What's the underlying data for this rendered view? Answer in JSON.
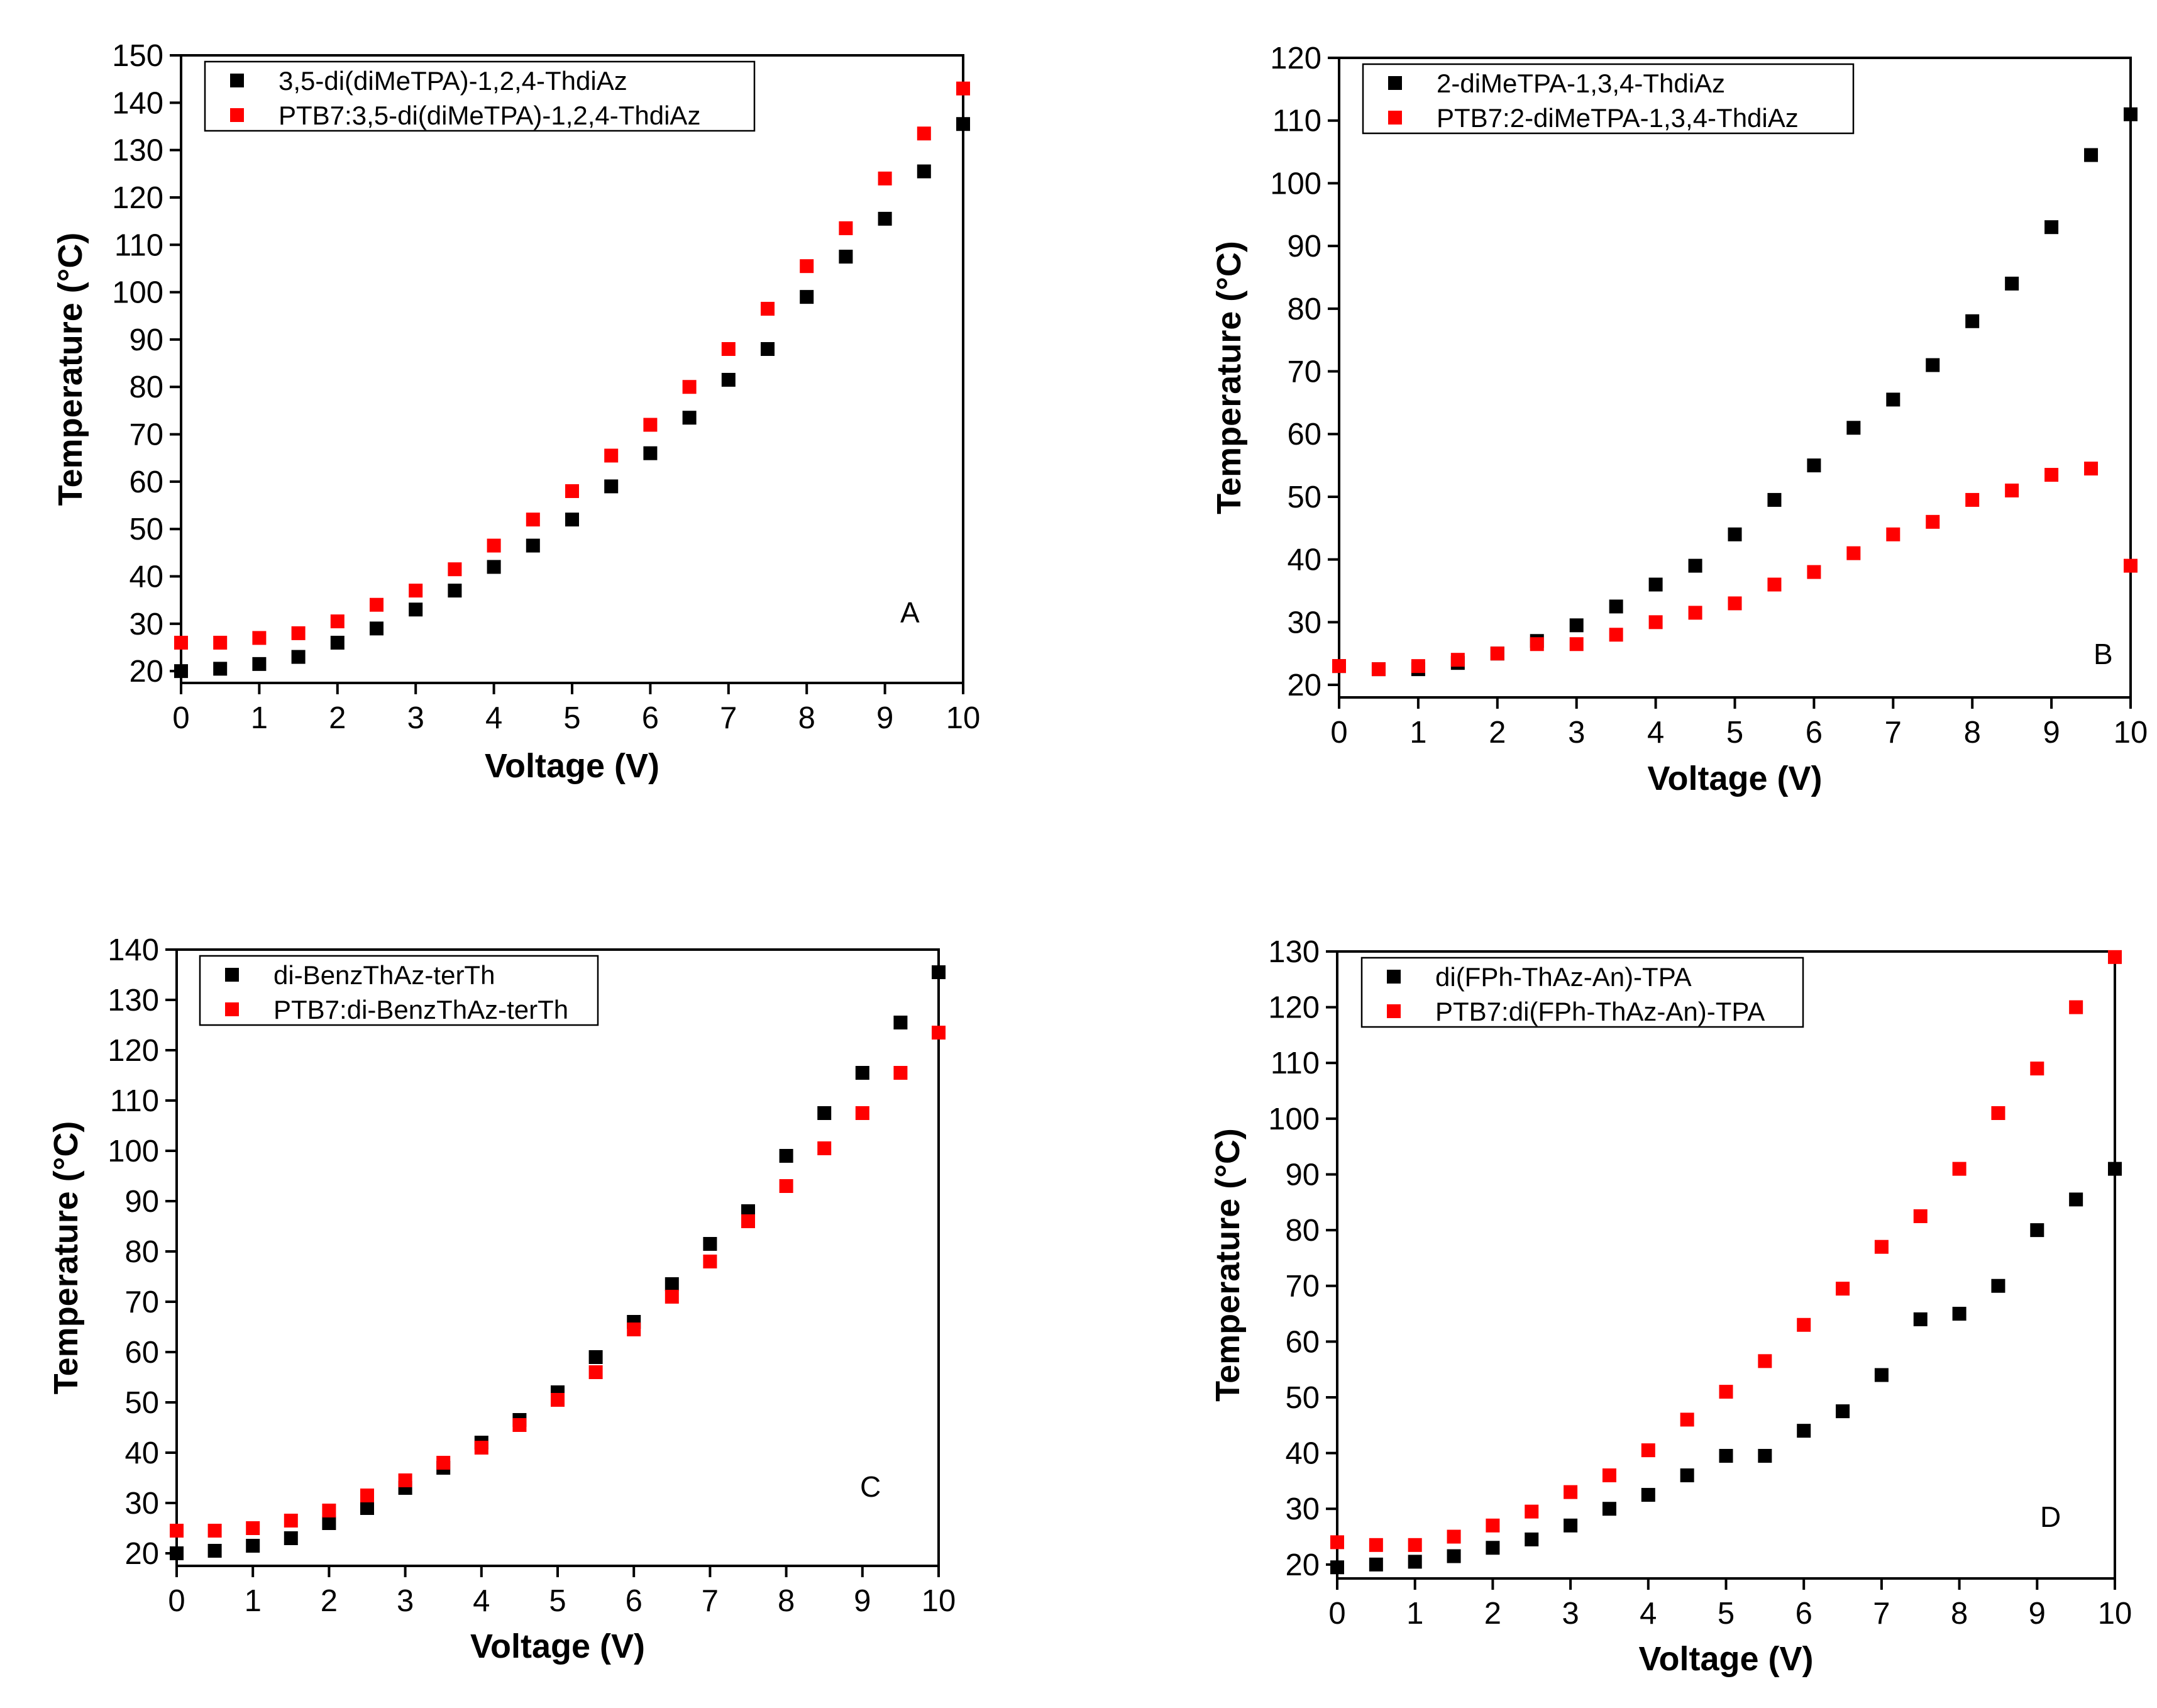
{
  "figure": {
    "colors": {
      "series_1": "#000000",
      "series_2": "#ff0000"
    }
  },
  "chart_data": [
    {
      "panel": "A",
      "type": "scatter",
      "xlabel": "Voltage (V)",
      "ylabel": "Temperature (°C)",
      "xlim": [
        0,
        10
      ],
      "ylim": [
        17.5,
        150
      ],
      "xticks": [
        0,
        1,
        2,
        3,
        4,
        5,
        6,
        7,
        8,
        9,
        10
      ],
      "yticks": [
        20,
        30,
        40,
        50,
        60,
        70,
        80,
        90,
        100,
        110,
        120,
        130,
        140,
        150
      ],
      "legend_position": "top-left",
      "x": [
        0,
        0.5,
        1,
        1.5,
        2,
        2.5,
        3,
        3.5,
        4,
        4.5,
        5,
        5.5,
        6,
        6.5,
        7,
        7.5,
        8,
        8.5,
        9,
        9.5,
        10
      ],
      "series": [
        {
          "name": "3,5-di(diMeTPA)-1,2,4-ThdiAz",
          "color": "#000000",
          "values": [
            20,
            20.5,
            21.5,
            23,
            26,
            29,
            33,
            37,
            42,
            46.5,
            52,
            59,
            66,
            73.5,
            81.5,
            88,
            99,
            107.5,
            115.5,
            125.5,
            135.5
          ]
        },
        {
          "name": "PTB7:3,5-di(diMeTPA)-1,2,4-ThdiAz",
          "color": "#ff0000",
          "values": [
            26,
            26,
            27,
            28,
            30.5,
            34,
            37,
            41.5,
            46.5,
            52,
            58,
            65.5,
            72,
            80,
            88,
            96.5,
            105.5,
            113.5,
            124,
            133.5,
            143
          ]
        }
      ]
    },
    {
      "panel": "B",
      "type": "scatter",
      "xlabel": "Voltage (V)",
      "ylabel": "Temperature (°C)",
      "xlim": [
        0,
        10
      ],
      "ylim": [
        18,
        120
      ],
      "xticks": [
        0,
        1,
        2,
        3,
        4,
        5,
        6,
        7,
        8,
        9,
        10
      ],
      "yticks": [
        20,
        30,
        40,
        50,
        60,
        70,
        80,
        90,
        100,
        110,
        120
      ],
      "legend_position": "top-left",
      "x": [
        0,
        0.5,
        1,
        1.5,
        2,
        2.5,
        3,
        3.5,
        4,
        4.5,
        5,
        5.5,
        6,
        6.5,
        7,
        7.5,
        8,
        8.5,
        9,
        9.5,
        10
      ],
      "series": [
        {
          "name": "2-diMeTPA-1,3,4-ThdiAz",
          "color": "#000000",
          "values": [
            23,
            22.5,
            22.5,
            23.5,
            25,
            27,
            29.5,
            32.5,
            36,
            39,
            44,
            49.5,
            55,
            61,
            65.5,
            71,
            78,
            84,
            93,
            104.5,
            111
          ]
        },
        {
          "name": "PTB7:2-diMeTPA-1,3,4-ThdiAz",
          "color": "#ff0000",
          "values": [
            23,
            22.5,
            23,
            24,
            25,
            26.5,
            26.5,
            28,
            30,
            31.5,
            33,
            36,
            38,
            41,
            44,
            46,
            49.5,
            51,
            53.5,
            54.5,
            39
          ]
        }
      ]
    },
    {
      "panel": "C",
      "type": "scatter",
      "xlabel": "Voltage (V)",
      "ylabel": "Temperature (°C)",
      "xlim": [
        0,
        10
      ],
      "ylim": [
        17.5,
        140
      ],
      "xticks": [
        0,
        1,
        2,
        3,
        4,
        5,
        6,
        7,
        8,
        9,
        10
      ],
      "yticks": [
        20,
        30,
        40,
        50,
        60,
        70,
        80,
        90,
        100,
        110,
        120,
        130,
        140
      ],
      "legend_position": "top-left",
      "x": [
        0,
        0.5,
        1,
        1.5,
        2,
        2.5,
        3,
        3.5,
        4,
        4.5,
        5,
        5.5,
        6,
        6.5,
        7,
        7.5,
        8,
        8.5,
        9,
        9.5,
        10
      ],
      "series": [
        {
          "name": "di-BenzThAz-terTh",
          "color": "#000000",
          "values": [
            20,
            20.5,
            21.5,
            23,
            26,
            29,
            33,
            37,
            42,
            46.5,
            52,
            59,
            66,
            73.5,
            81.5,
            88,
            99,
            107.5,
            115.5,
            125.5,
            135.5
          ]
        },
        {
          "name": "PTB7:di-BenzThAz-terTh",
          "color": "#ff0000",
          "values": [
            24.5,
            24.5,
            25,
            26.5,
            28.5,
            31.5,
            34.5,
            38,
            41,
            45.5,
            50.5,
            56,
            64.5,
            71,
            78,
            86,
            93,
            100.5,
            107.5,
            115.5,
            123.5
          ]
        }
      ]
    },
    {
      "panel": "D",
      "type": "scatter",
      "xlabel": "Voltage (V)",
      "ylabel": "Temperature (°C)",
      "xlim": [
        0,
        10
      ],
      "ylim": [
        17.5,
        130
      ],
      "xticks": [
        0,
        1,
        2,
        3,
        4,
        5,
        6,
        7,
        8,
        9,
        10
      ],
      "yticks": [
        20,
        30,
        40,
        50,
        60,
        70,
        80,
        90,
        100,
        110,
        120,
        130
      ],
      "legend_position": "top-left",
      "x": [
        0,
        0.5,
        1,
        1.5,
        2,
        2.5,
        3,
        3.5,
        4,
        4.5,
        5,
        5.5,
        6,
        6.5,
        7,
        7.5,
        8,
        8.5,
        9,
        9.5,
        10
      ],
      "series": [
        {
          "name": "di(FPh-ThAz-An)-TPA",
          "color": "#000000",
          "values": [
            19.5,
            20,
            20.5,
            21.5,
            23,
            24.5,
            27,
            30,
            32.5,
            36,
            39.5,
            39.5,
            44,
            47.5,
            54,
            64,
            65,
            70,
            80,
            85.5,
            91
          ]
        },
        {
          "name": "PTB7:di(FPh-ThAz-An)-TPA",
          "color": "#ff0000",
          "values": [
            24,
            23.5,
            23.5,
            25,
            27,
            29.5,
            33,
            36,
            40.5,
            46,
            51,
            56.5,
            63,
            69.5,
            77,
            82.5,
            91,
            101,
            109,
            120,
            129
          ]
        }
      ]
    }
  ]
}
